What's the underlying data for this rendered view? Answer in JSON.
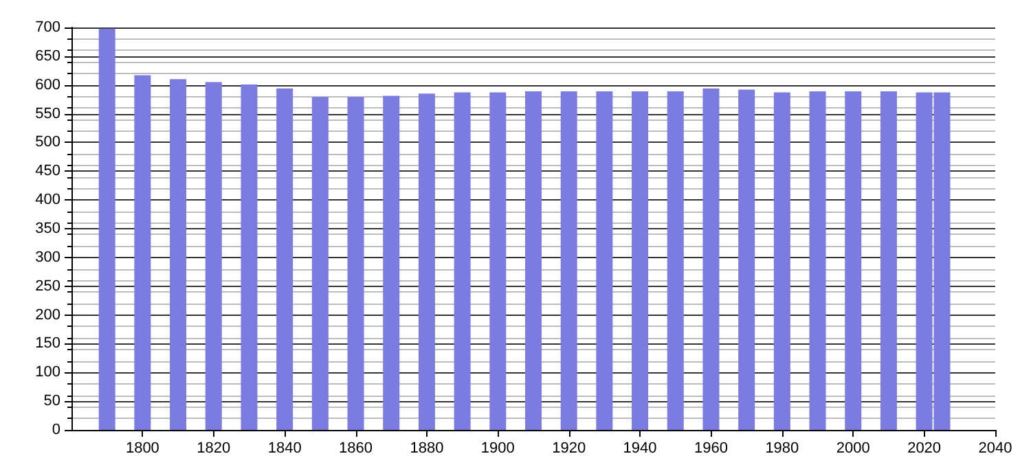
{
  "chart_data": {
    "type": "bar",
    "x": [
      1790,
      1800,
      1810,
      1820,
      1830,
      1840,
      1850,
      1860,
      1870,
      1880,
      1890,
      1900,
      1910,
      1920,
      1930,
      1940,
      1950,
      1960,
      1970,
      1980,
      1990,
      2000,
      2010,
      2020,
      2025
    ],
    "values": [
      698,
      617,
      610,
      605,
      601,
      594,
      579,
      579,
      581,
      585,
      587,
      587,
      589,
      589,
      589,
      589,
      589,
      594,
      592,
      587,
      589,
      589,
      589,
      587,
      587
    ],
    "color": "#7b7be0",
    "xlim": [
      1780,
      2040
    ],
    "xticks": [
      1800,
      1820,
      1840,
      1860,
      1880,
      1900,
      1920,
      1940,
      1960,
      1980,
      2000,
      2020,
      2040
    ],
    "ylim": [
      0,
      700
    ],
    "yticks": [
      0,
      50,
      100,
      150,
      200,
      250,
      300,
      350,
      400,
      450,
      500,
      550,
      600,
      650,
      700
    ],
    "grid": "y"
  }
}
